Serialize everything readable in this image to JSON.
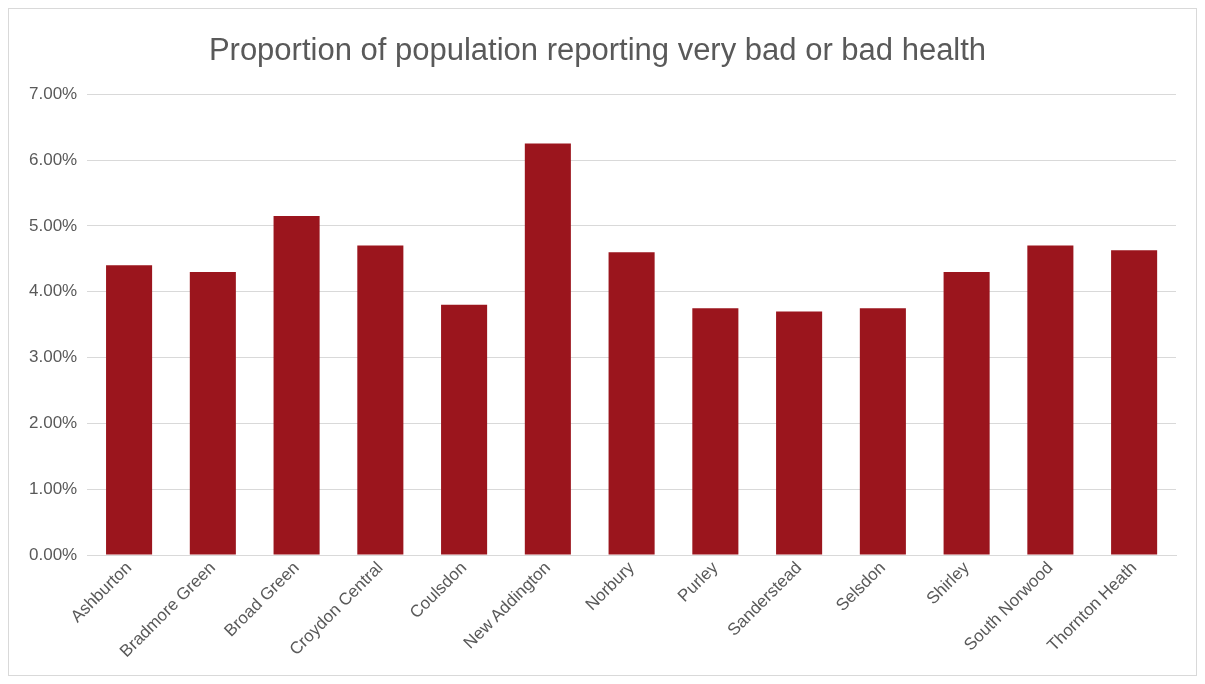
{
  "chart_data": {
    "type": "bar",
    "title": "Proportion of population reporting very bad or bad health",
    "categories": [
      "Ashburton",
      "Bradmore Green",
      "Broad Green",
      "Croydon Central",
      "Coulsdon",
      "New Addington",
      "Norbury",
      "Purley",
      "Sanderstead",
      "Selsdon",
      "Shirley",
      "South Norwood",
      "Thornton Heath"
    ],
    "values": [
      4.4,
      4.3,
      5.15,
      4.7,
      3.8,
      6.25,
      4.6,
      3.75,
      3.7,
      3.75,
      4.3,
      4.7,
      4.63
    ],
    "color": "#9b151d",
    "ylim": [
      0,
      7
    ],
    "yticks": [
      {
        "value": 0,
        "label": "0.00%"
      },
      {
        "value": 1,
        "label": "1.00%"
      },
      {
        "value": 2,
        "label": "2.00%"
      },
      {
        "value": 3,
        "label": "3.00%"
      },
      {
        "value": 4,
        "label": "4.00%"
      },
      {
        "value": 5,
        "label": "5.00%"
      },
      {
        "value": 6,
        "label": "6.00%"
      },
      {
        "value": 7,
        "label": "7.00%"
      }
    ],
    "grid": "y",
    "legend": false
  }
}
